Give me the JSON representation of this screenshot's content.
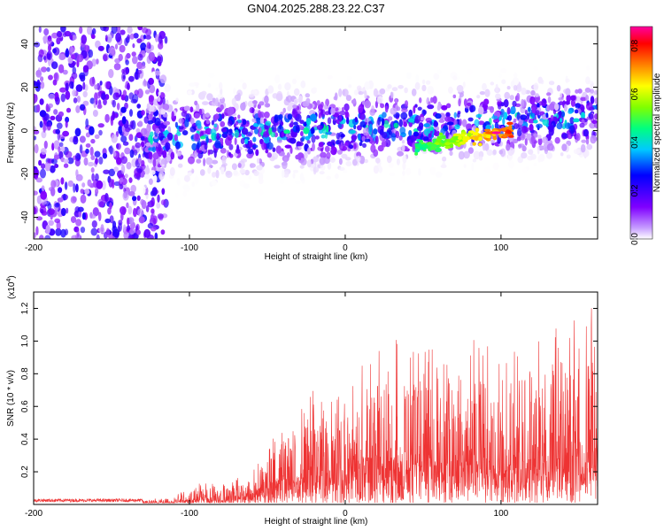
{
  "chart_data": [
    {
      "type": "heatmap",
      "title": "GN04.2025.288.23.22.C37",
      "xlabel": "Height of straight line (km)",
      "ylabel": "Frequency (Hz)",
      "xlim": [
        -200,
        162
      ],
      "ylim": [
        -50,
        48
      ],
      "x_ticks": [
        -200,
        -100,
        0,
        100
      ],
      "y_ticks": [
        -40,
        -20,
        0,
        20,
        40
      ],
      "colorbar": {
        "label": "Normalized spectral amplitude",
        "range": [
          0.0,
          0.88
        ],
        "ticks": [
          "0.0",
          "0.2",
          "0.4",
          "0.6",
          "0.8"
        ],
        "colors": [
          "#ffffff",
          "#c8a0ff",
          "#8000ff",
          "#0000ff",
          "#00c8ff",
          "#00ff80",
          "#80ff00",
          "#ffff00",
          "#ff8000",
          "#ff0000",
          "#ff00a0"
        ]
      },
      "features": [
        {
          "name": "diffuse noise",
          "x_range": [
            -200,
            -115
          ],
          "freq_range": [
            -50,
            48
          ],
          "amplitude": 0.15
        },
        {
          "name": "central band",
          "x_range": [
            -130,
            162
          ],
          "freq_center_start": -3,
          "freq_center_end": 6,
          "amplitude": 0.35
        },
        {
          "name": "peak",
          "x": 97,
          "freq": -1,
          "amplitude": 0.88
        }
      ]
    },
    {
      "type": "line",
      "xlabel": "Height of straight line (km)",
      "ylabel": "SNR (10 * v/v)",
      "yscale_label": "(x10",
      "yscale_exp": "4",
      "xlim": [
        -200,
        162
      ],
      "ylim": [
        0,
        1.3
      ],
      "x_ticks": [
        -200,
        -100,
        0,
        100
      ],
      "y_ticks": [
        "0.2",
        "0.4",
        "0.6",
        "0.8",
        "1.0",
        "1.2"
      ],
      "series": [
        {
          "name": "SNR",
          "color": "#ee3333",
          "envelope_x": [
            -200,
            -130,
            -110,
            -95,
            -80,
            -60,
            -45,
            -30,
            -20,
            -10,
            0,
            10,
            20,
            30,
            40,
            50,
            60,
            70,
            80,
            90,
            100,
            110,
            120,
            130,
            140,
            150,
            162
          ],
          "envelope_y": [
            0.03,
            0.03,
            0.05,
            0.14,
            0.12,
            0.2,
            0.45,
            0.55,
            0.72,
            0.62,
            0.7,
            0.85,
            0.95,
            1.06,
            0.92,
            1.0,
            0.98,
            1.0,
            1.01,
            1.03,
            0.88,
            0.96,
            1.03,
            1.07,
            1.13,
            1.22,
            1.23
          ]
        }
      ]
    }
  ]
}
